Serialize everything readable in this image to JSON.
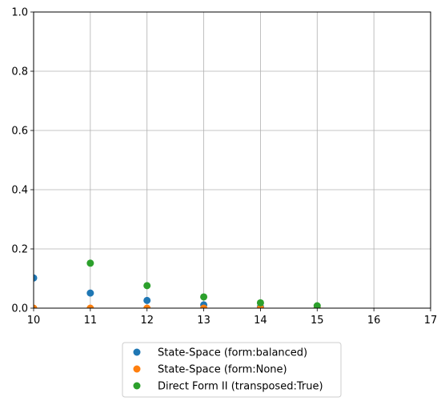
{
  "chart_data": {
    "type": "scatter",
    "title": "",
    "xlabel": "",
    "ylabel": "",
    "xlim": [
      10,
      17
    ],
    "ylim": [
      0,
      1
    ],
    "xticks": [
      "10",
      "11",
      "12",
      "13",
      "14",
      "15",
      "16",
      "17"
    ],
    "yticks": [
      "0.0",
      "0.2",
      "0.4",
      "0.6",
      "0.8",
      "1.0"
    ],
    "grid": true,
    "legend_position": "below",
    "series": [
      {
        "name": "State-Space (form:balanced)",
        "color": "#1f77b4",
        "x": [
          10,
          11,
          12,
          13,
          14,
          15
        ],
        "y": [
          0.102,
          0.051,
          0.026,
          0.011,
          0.004,
          0.001
        ]
      },
      {
        "name": "State-Space (form:None)",
        "color": "#ff7f0e",
        "x": [
          10,
          11,
          12,
          13,
          14,
          15
        ],
        "y": [
          0.0,
          0.0,
          0.0,
          0.0,
          0.0,
          0.0
        ]
      },
      {
        "name": "Direct Form II (transposed:True)",
        "color": "#2ca02c",
        "x": [
          11,
          12,
          13,
          14,
          15
        ],
        "y": [
          0.152,
          0.076,
          0.038,
          0.018,
          0.008
        ]
      }
    ]
  }
}
